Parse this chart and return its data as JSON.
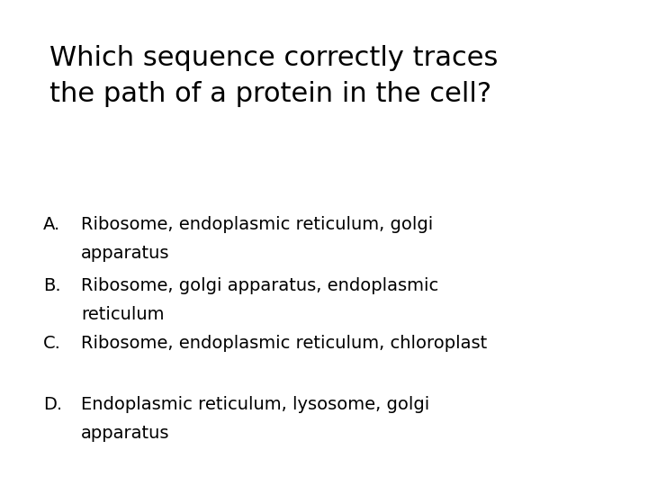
{
  "title_line1": "Which sequence correctly traces",
  "title_line2": "the path of a protein in the cell?",
  "options": [
    {
      "label": "A.",
      "line1": "Ribosome, endoplasmic reticulum, golgi",
      "line2": "apparatus"
    },
    {
      "label": "B.",
      "line1": "Ribosome, golgi apparatus, endoplasmic",
      "line2": "reticulum"
    },
    {
      "label": "C.",
      "line1": "Ribosome, endoplasmic reticulum, chloroplast",
      "line2": null
    },
    {
      "label": "D.",
      "line1": "Endoplasmic reticulum, lysosome, golgi",
      "line2": "apparatus"
    }
  ],
  "background_color": "#ffffff",
  "text_color": "#000000",
  "title_fontsize": 22,
  "option_fontsize": 14,
  "label_fontsize": 14,
  "font_family": "DejaVu Sans"
}
